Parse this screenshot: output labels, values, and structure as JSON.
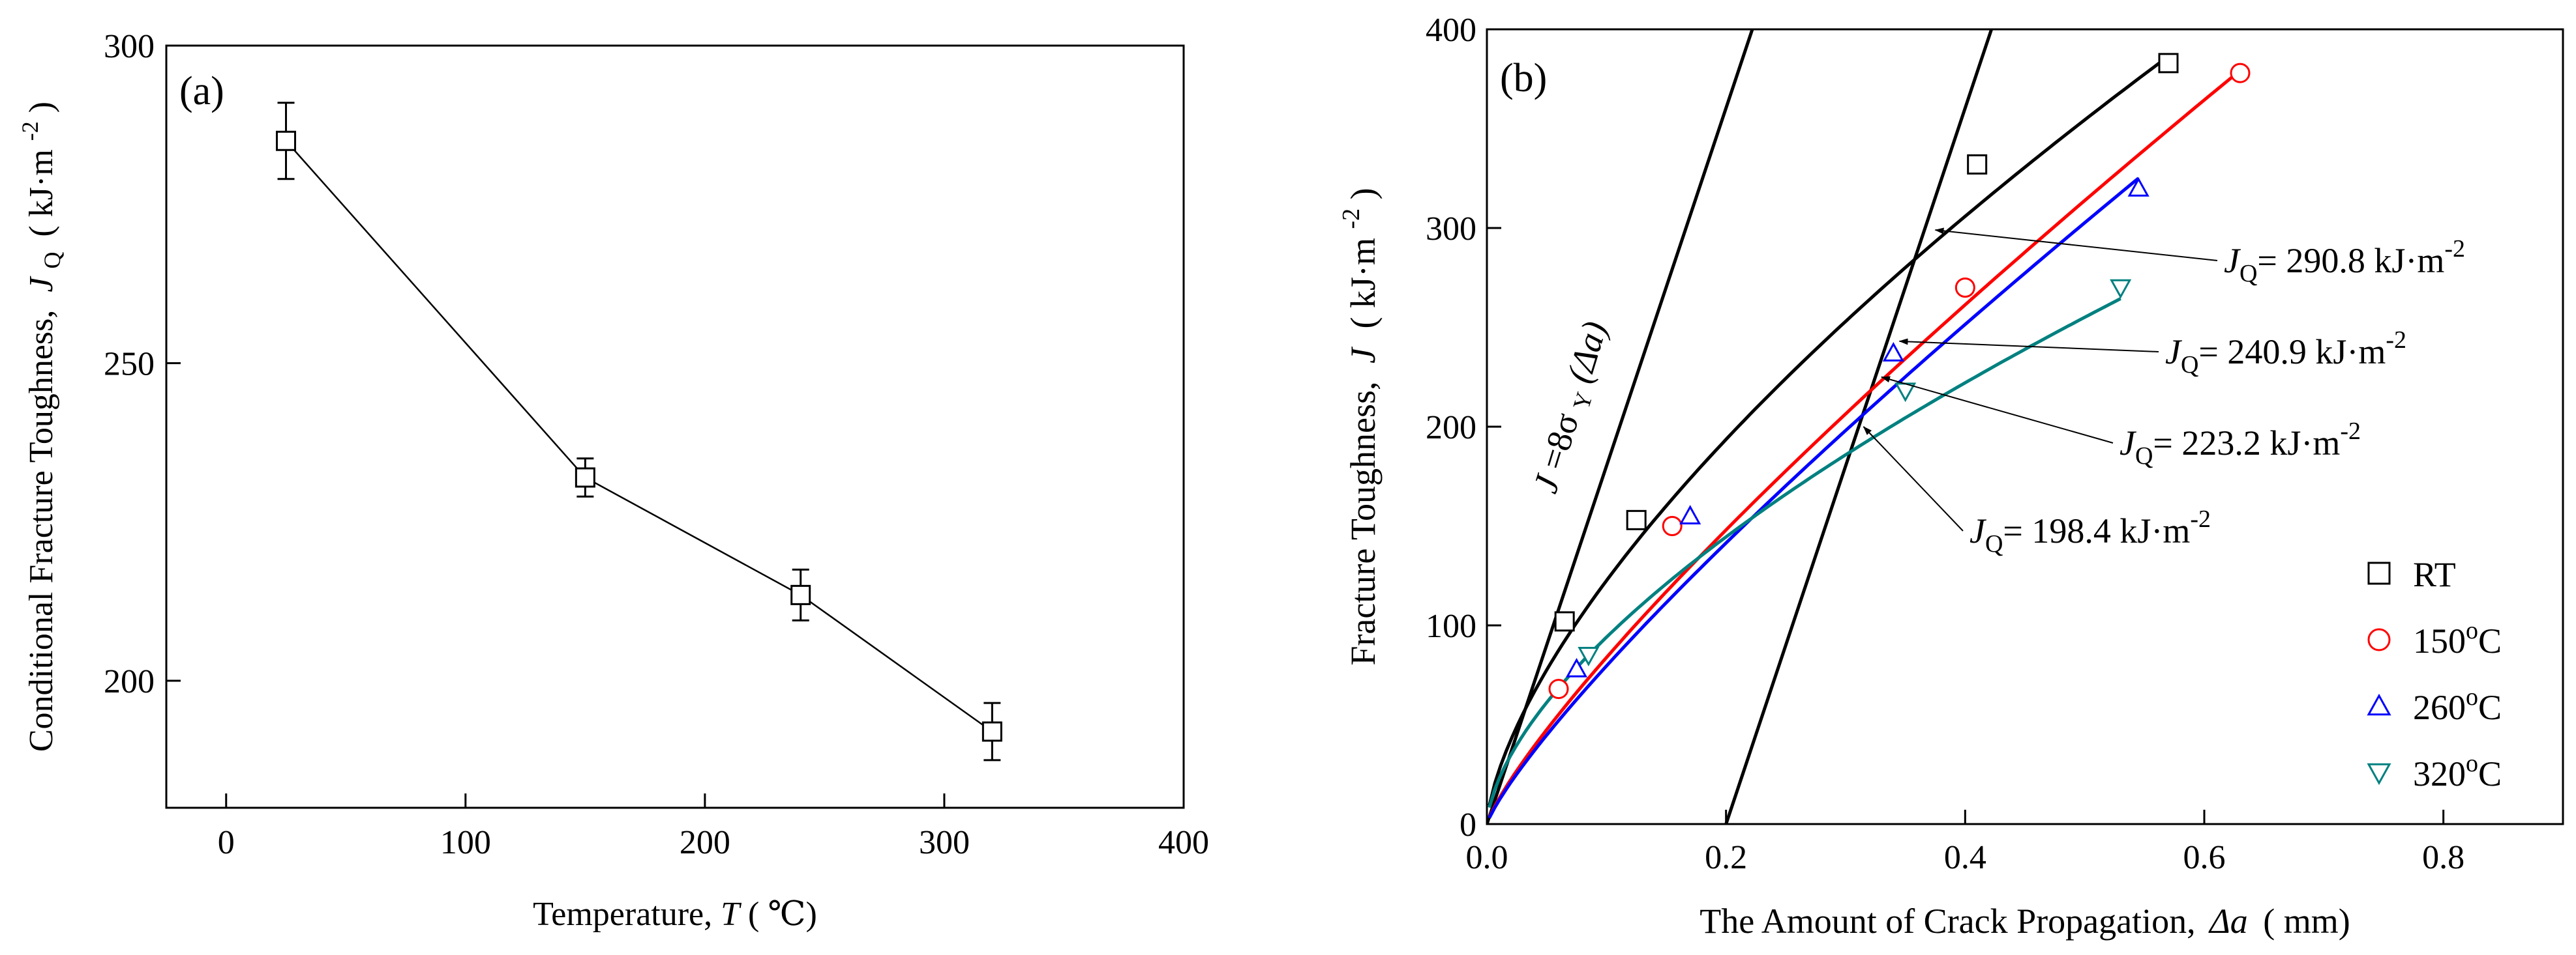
{
  "chart_data": [
    {
      "type": "line",
      "panel_label": "(a)",
      "xlabel_main": "Temperature,",
      "xlabel_var": "T",
      "xlabel_unit": "( ℃)",
      "ylabel_main": "Conditional Fracture Toughness,",
      "ylabel_var": "J",
      "ylabel_sub": "Q",
      "ylabel_unit": "( kJ·m",
      "ylabel_exp": "-2",
      "ylabel_close": ")",
      "xlim": [
        -25,
        400
      ],
      "ylim": [
        180,
        300
      ],
      "xticks": [
        0,
        100,
        200,
        300,
        400
      ],
      "yticks": [
        200,
        250,
        300
      ],
      "series": [
        {
          "name": "JQ",
          "x": [
            25,
            150,
            240,
            320
          ],
          "y": [
            285,
            232,
            213.5,
            192
          ],
          "err": [
            6,
            3,
            4,
            4.5
          ],
          "color": "#000000",
          "marker": "square"
        }
      ]
    },
    {
      "type": "scatter",
      "panel_label": "(b)",
      "xlabel_main": "The Amount of Crack Propagation,",
      "xlabel_var": "Δa",
      "xlabel_unit": "( mm)",
      "ylabel_main": "Fracture Toughness,",
      "ylabel_var": "J",
      "ylabel_unit": "( kJ·m",
      "ylabel_exp": "-2",
      "ylabel_close": ")",
      "xlim": [
        0,
        0.9
      ],
      "ylim": [
        0,
        400
      ],
      "xticks": [
        0.0,
        0.2,
        0.4,
        0.6,
        0.8
      ],
      "xtick_labels": [
        "0.0",
        "0.2",
        "0.4",
        "0.6",
        "0.8"
      ],
      "yticks": [
        0,
        100,
        200,
        300,
        400
      ],
      "blunting_line": {
        "label_pre": "J",
        "label_mid": "=8σ",
        "label_sub": "Y",
        "label_post": " (Δa)",
        "lines": [
          {
            "x": [
              0.0,
              0.222
            ],
            "y": [
              0,
              400
            ]
          },
          {
            "x": [
              0.2,
              0.422
            ],
            "y": [
              0,
              400
            ]
          }
        ]
      },
      "series": [
        {
          "name": "RT",
          "symbol": "□",
          "color": "#000000",
          "marker": "square",
          "x": [
            0.065,
            0.125,
            0.41,
            0.57
          ],
          "y": [
            102,
            153,
            332,
            383
          ],
          "fit": {
            "a": 560,
            "b": 0.66
          }
        },
        {
          "name": "150",
          "symbol": "○",
          "color": "#ff0000",
          "marker": "circle",
          "x": [
            0.06,
            0.155,
            0.4,
            0.63
          ],
          "y": [
            68,
            150,
            270,
            378
          ],
          "fit": {
            "a": 554,
            "b": 0.82
          }
        },
        {
          "name": "260",
          "symbol": "△",
          "color": "#0000ff",
          "marker": "triangle-up",
          "x": [
            0.075,
            0.17,
            0.34,
            0.545
          ],
          "y": [
            78,
            155,
            237,
            320
          ],
          "fit": {
            "a": 538,
            "b": 0.83
          }
        },
        {
          "name": "320",
          "symbol": "▽",
          "color": "#008080",
          "marker": "triangle-down",
          "x": [
            0.085,
            0.35,
            0.53
          ],
          "y": [
            85,
            218,
            270
          ],
          "fit": {
            "a": 392,
            "b": 0.62
          }
        }
      ],
      "legend": [
        {
          "name": "RT",
          "sup": ""
        },
        {
          "name": "150",
          "sup": "o",
          "unit": "C"
        },
        {
          "name": "260",
          "sup": "o",
          "unit": "C"
        },
        {
          "name": "320",
          "sup": "o",
          "unit": "C"
        }
      ],
      "annotations": [
        {
          "pre": "J",
          "sub": "Q",
          "value": "= 290.8 kJ·m",
          "exp": "-2",
          "ax": 0.375,
          "ay": 299
        },
        {
          "pre": "J",
          "sub": "Q",
          "value": "= 240.9 kJ·m",
          "exp": "-2",
          "ax": 0.345,
          "ay": 243
        },
        {
          "pre": "J",
          "sub": "Q",
          "value": "= 223.2 kJ·m",
          "exp": "-2",
          "ax": 0.33,
          "ay": 225
        },
        {
          "pre": "J",
          "sub": "Q",
          "value": "= 198.4 kJ·m",
          "exp": "-2",
          "ax": 0.315,
          "ay": 200
        }
      ]
    }
  ]
}
